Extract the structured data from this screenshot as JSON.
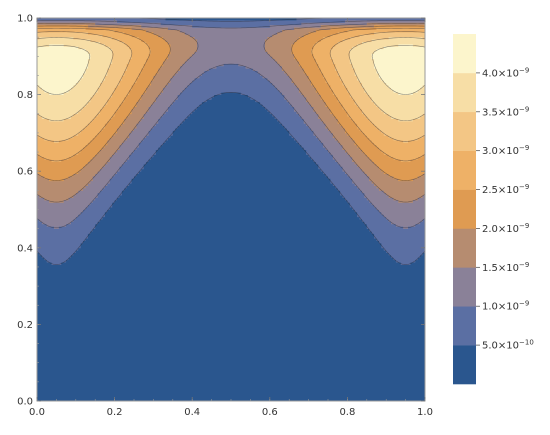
{
  "chart_data": {
    "type": "contour",
    "title": "",
    "xlabel": "",
    "ylabel": "",
    "xlim": [
      0,
      1
    ],
    "ylim": [
      0,
      1
    ],
    "x_ticks": [
      0.0,
      0.2,
      0.4,
      0.6,
      0.8,
      1.0
    ],
    "x_tick_labels": [
      "0.0",
      "0.2",
      "0.4",
      "0.6",
      "0.8",
      "1.0"
    ],
    "y_ticks": [
      0.0,
      0.2,
      0.4,
      0.6,
      0.8,
      1.0
    ],
    "y_tick_labels": [
      "0.0",
      "0.2",
      "0.4",
      "0.6",
      "0.8",
      "1.0"
    ],
    "grid": false,
    "legend_position": "right",
    "levels": [
      5e-10,
      1e-09,
      1.5e-09,
      2e-09,
      2.5e-09,
      3e-09,
      3.5e-09,
      4e-09
    ],
    "level_labels": [
      {
        "mantissa": "5.0",
        "exp": "−10"
      },
      {
        "mantissa": "1.0",
        "exp": "−9"
      },
      {
        "mantissa": "1.5",
        "exp": "−9"
      },
      {
        "mantissa": "2.0",
        "exp": "−9"
      },
      {
        "mantissa": "2.5",
        "exp": "−9"
      },
      {
        "mantissa": "3.0",
        "exp": "−9"
      },
      {
        "mantissa": "3.5",
        "exp": "−9"
      },
      {
        "mantissa": "4.0",
        "exp": "−9"
      }
    ],
    "band_colors": [
      "#2a568e",
      "#5b6fa3",
      "#8a8198",
      "#b68c70",
      "#df9b52",
      "#eeb167",
      "#f3c685",
      "#f7dea6",
      "#fcf5cc"
    ],
    "left_peak": {
      "x": 0.05,
      "y": 0.9,
      "max_value": 4.3e-09
    },
    "right_peak": {
      "x": 0.95,
      "y": 0.9,
      "max_value": 4.3e-09
    }
  }
}
